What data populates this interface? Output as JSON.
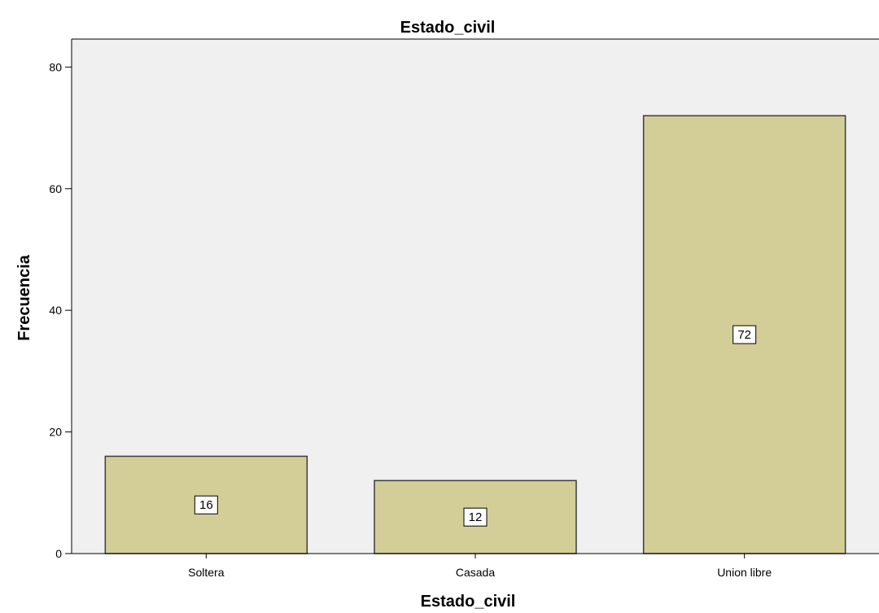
{
  "chart_data": {
    "type": "bar",
    "title": "Estado_civil",
    "xlabel": "Estado_civil",
    "ylabel": "Frecuencia",
    "categories": [
      "Soltera",
      "Casada",
      "Union libre"
    ],
    "values": [
      16,
      12,
      72
    ],
    "data_labels": [
      "16",
      "12",
      "72"
    ],
    "yticks": [
      0,
      20,
      40,
      60,
      80
    ],
    "ylim": [
      0,
      84.6
    ],
    "grid": false,
    "legend": "none",
    "colors": {
      "plot_background": "#f0f0f0",
      "bar_fill": "#d3ce97",
      "bar_stroke": "#3c3c3c",
      "label_box": "#ffffff"
    }
  }
}
